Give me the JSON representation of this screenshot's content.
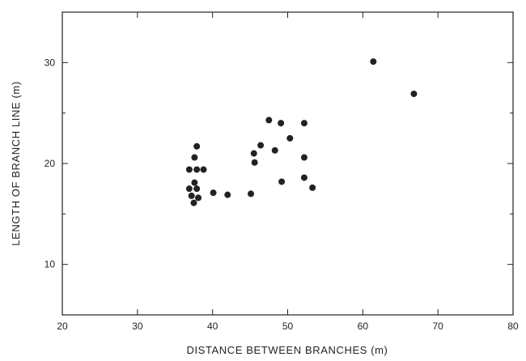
{
  "chart_data": {
    "type": "scatter",
    "title": "",
    "xlabel": "DISTANCE BETWEEN BRANCHES (m)",
    "ylabel": "LENGTH OF BRANCH LINE (m)",
    "xlim": [
      20,
      80
    ],
    "ylim": [
      5,
      35
    ],
    "xticks": [
      20,
      30,
      40,
      50,
      60,
      70,
      80
    ],
    "yticks": [
      10,
      20,
      30
    ],
    "grid": false,
    "marker_color": "#222222",
    "points": [
      [
        37.9,
        21.7
      ],
      [
        37.6,
        20.6
      ],
      [
        36.9,
        19.4
      ],
      [
        37.9,
        19.4
      ],
      [
        38.8,
        19.4
      ],
      [
        37.6,
        18.1
      ],
      [
        36.9,
        17.5
      ],
      [
        37.9,
        17.5
      ],
      [
        37.2,
        16.8
      ],
      [
        38.1,
        16.6
      ],
      [
        37.5,
        16.1
      ],
      [
        40.1,
        17.1
      ],
      [
        42.0,
        16.9
      ],
      [
        45.1,
        17.0
      ],
      [
        45.5,
        21.0
      ],
      [
        45.6,
        20.1
      ],
      [
        46.4,
        21.8
      ],
      [
        47.5,
        24.3
      ],
      [
        48.3,
        21.3
      ],
      [
        49.1,
        24.0
      ],
      [
        50.3,
        22.5
      ],
      [
        49.2,
        18.2
      ],
      [
        52.2,
        24.0
      ],
      [
        52.2,
        20.6
      ],
      [
        52.2,
        18.6
      ],
      [
        53.3,
        17.6
      ],
      [
        61.4,
        30.1
      ],
      [
        66.8,
        26.9
      ]
    ]
  }
}
